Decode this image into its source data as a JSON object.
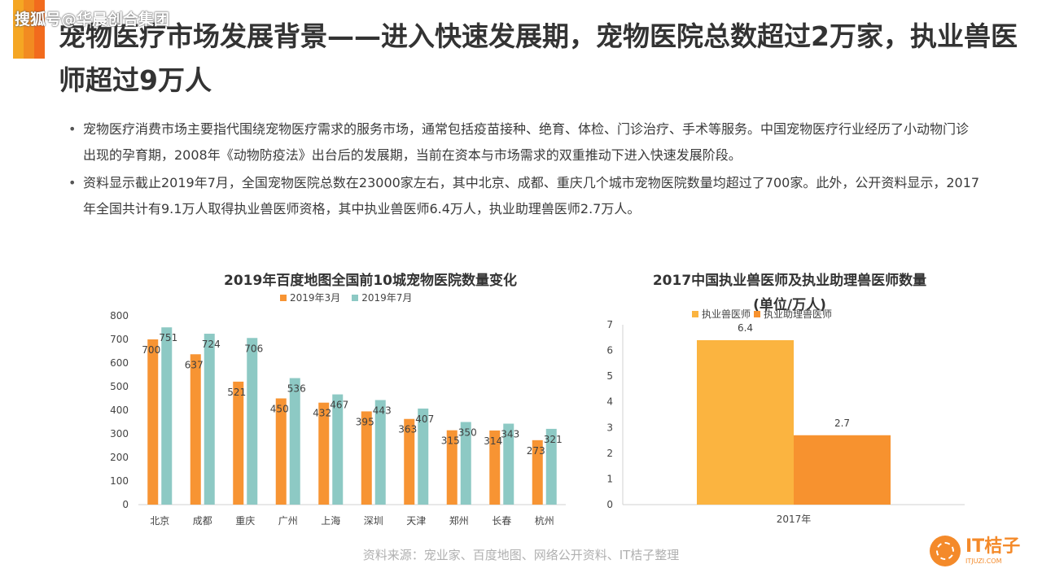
{
  "colors": {
    "accent_bars": [
      "#f5a623",
      "#f28b21",
      "#f26b1d"
    ],
    "series_mar": "#f79433",
    "series_jul": "#8dc9c4",
    "bar_vet": "#fbb440",
    "bar_assistant": "#f7922f"
  },
  "watermark_top": "搜狐号@华晨创合集团",
  "title": "宠物医疗市场发展背景——进入快速发展期，宠物医院总数超过2万家，执业兽医师超过9万人",
  "bullets": [
    "宠物医疗消费市场主要指代围绕宠物医疗需求的服务市场，通常包括疫苗接种、绝育、体检、门诊治疗、手术等服务。中国宠物医疗行业经历了小动物门诊出现的孕育期，2008年《动物防疫法》出台后的发展期，当前在资本与市场需求的双重推动下进入快速发展阶段。",
    "资料显示截止2019年7月，全国宠物医院总数在23000家左右，其中北京、成都、重庆几个城市宠物医院数量均超过了700家。此外，公开资料显示，2017年全国共计有9.1万人取得执业兽医师资格，其中执业兽医师6.4万人，执业助理兽医师2.7万人。"
  ],
  "chart_data": [
    {
      "type": "bar",
      "title": "2019年百度地图全国前10城宠物医院数量变化",
      "categories": [
        "北京",
        "成都",
        "重庆",
        "广州",
        "上海",
        "深圳",
        "天津",
        "郑州",
        "长春",
        "杭州"
      ],
      "series": [
        {
          "name": "2019年3月",
          "values": [
            700,
            637,
            521,
            450,
            432,
            395,
            363,
            315,
            314,
            273
          ]
        },
        {
          "name": "2019年7月",
          "values": [
            751,
            724,
            706,
            536,
            467,
            443,
            407,
            350,
            343,
            321
          ]
        }
      ],
      "ylim": [
        0,
        800
      ],
      "yticks": [
        0,
        100,
        200,
        300,
        400,
        500,
        600,
        700,
        800
      ],
      "grid": false,
      "legend": "top"
    },
    {
      "type": "bar",
      "title": "2017中国执业兽医师及执业助理兽医师数量",
      "subtitle": "(单位/万人)",
      "categories": [
        "2017年"
      ],
      "series": [
        {
          "name": "执业兽医师",
          "values": [
            6.4
          ]
        },
        {
          "name": "执业助理兽医师",
          "values": [
            2.7
          ]
        }
      ],
      "ylim": [
        0,
        7
      ],
      "yticks": [
        0,
        1,
        2,
        3,
        4,
        5,
        6,
        7
      ],
      "grid": false,
      "legend": "top"
    }
  ],
  "source": "资料来源：宠业家、百度地图、网络公开资料、IT桔子整理",
  "logo": {
    "brand": "IT桔子",
    "url": "ITJUZI.COM"
  }
}
